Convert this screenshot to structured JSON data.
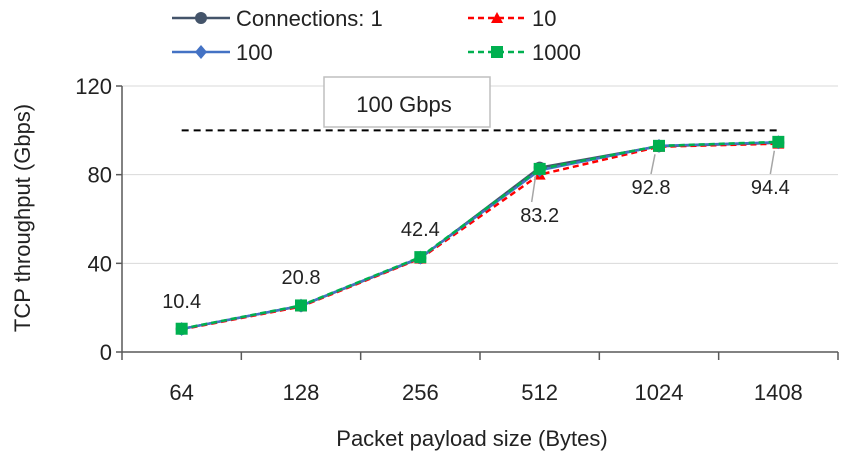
{
  "chart_data": {
    "type": "line",
    "xlabel": "Packet payload size (Bytes)",
    "ylabel": "TCP throughput (Gbps)",
    "categories": [
      "64",
      "128",
      "256",
      "512",
      "1024",
      "1408"
    ],
    "ylim": [
      0,
      120
    ],
    "yticks": [
      0,
      40,
      80,
      120
    ],
    "grid": true,
    "legend_position": "top",
    "series": [
      {
        "name": "Connections: 1",
        "values": [
          10.4,
          20.8,
          42.4,
          83.2,
          92.8,
          94.4
        ],
        "color": "#44546a",
        "marker": "circle",
        "dash": "solid"
      },
      {
        "name": "10",
        "values": [
          10.2,
          20.5,
          42.2,
          80.0,
          92.6,
          94.0
        ],
        "color": "#ff0000",
        "marker": "triangle",
        "dash": "dashed"
      },
      {
        "name": "100",
        "values": [
          10.4,
          20.9,
          42.6,
          82.0,
          93.0,
          94.6
        ],
        "color": "#4472c4",
        "marker": "diamond",
        "dash": "solid"
      },
      {
        "name": "1000",
        "values": [
          10.5,
          21.0,
          42.8,
          82.6,
          93.0,
          94.8
        ],
        "color": "#00b050",
        "marker": "square",
        "dash": "dashed"
      }
    ],
    "data_labels": [
      "10.4",
      "20.8",
      "42.4",
      "83.2",
      "92.8",
      "94.4"
    ],
    "reference_line": {
      "value": 100,
      "label": "100 Gbps",
      "color": "#000000",
      "dash": "dashed"
    }
  }
}
